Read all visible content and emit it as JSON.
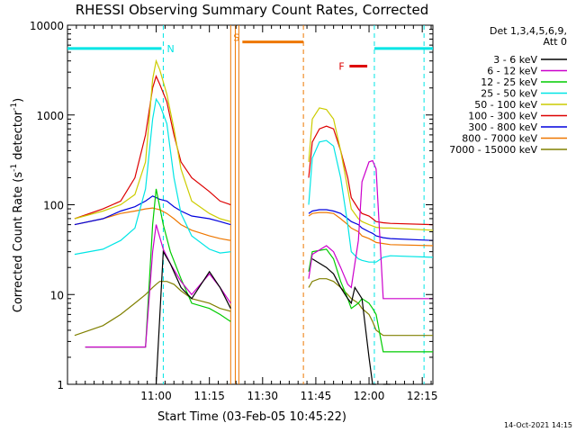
{
  "chart_data": {
    "type": "line",
    "title": "RHESSI Observing Summary Count Rates, Corrected",
    "xlabel": "Start Time (03-Feb-05 10:45:22)",
    "ylabel_main": "Corrected Count Rate (s",
    "ylabel_sup1": "-1",
    "ylabel_mid": " detector",
    "ylabel_sup2": "-1",
    "ylabel_end": ")",
    "y_scale": "log",
    "ylim": [
      1,
      10000
    ],
    "xlim_minutes": [
      -25,
      78
    ],
    "x_ticks": [
      {
        "label": "11:00",
        "m": 0
      },
      {
        "label": "11:15",
        "m": 15
      },
      {
        "label": "11:30",
        "m": 30
      },
      {
        "label": "11:45",
        "m": 45
      },
      {
        "label": "12:00",
        "m": 60
      },
      {
        "label": "12:15",
        "m": 75
      }
    ],
    "y_ticks": [
      {
        "label": "1",
        "v": 1
      },
      {
        "label": "10",
        "v": 10
      },
      {
        "label": "100",
        "v": 100
      },
      {
        "label": "1000",
        "v": 1000
      },
      {
        "label": "10000",
        "v": 10000
      }
    ],
    "legend": {
      "position": "right",
      "header1": "Det 1,3,4,5,6,9,",
      "header2": "Att 0"
    },
    "series": [
      {
        "name": "3 - 6 keV",
        "color": "#000000",
        "x": [
          -20,
          -12,
          -8,
          -3,
          -1,
          0,
          2,
          4,
          7,
          10,
          15,
          18,
          21,
          22,
          22.1,
          43,
          44,
          48,
          50,
          52,
          54,
          55,
          56,
          58,
          60,
          61,
          62,
          62.1,
          64,
          66,
          68
        ],
        "y": [
          null,
          null,
          null,
          null,
          null,
          1,
          30,
          22,
          12,
          9,
          18,
          12,
          7,
          null,
          null,
          null,
          25,
          20,
          17,
          12,
          9,
          8,
          12,
          9,
          2,
          1,
          1,
          null,
          1,
          1,
          null
        ]
      },
      {
        "name": "6 - 12 keV",
        "color": "#cc00cc",
        "x": [
          -20,
          -5,
          -3,
          -1,
          0,
          2,
          4,
          7,
          10,
          15,
          18,
          21,
          22,
          43,
          44,
          48,
          50,
          52,
          54,
          55,
          57,
          58,
          60,
          61,
          62,
          64,
          66,
          78
        ],
        "y": [
          2.6,
          2.6,
          2.6,
          30,
          60,
          32,
          22,
          14,
          10,
          17,
          12,
          8,
          null,
          15,
          28,
          35,
          30,
          20,
          13,
          12,
          40,
          180,
          300,
          310,
          250,
          9,
          9,
          9
        ]
      },
      {
        "name": "12 - 25 keV",
        "color": "#00cc00",
        "x": [
          -20,
          -5,
          -3,
          -1,
          0,
          2,
          4,
          7,
          10,
          15,
          18,
          21,
          22,
          43,
          44,
          48,
          50,
          52,
          54,
          55,
          57,
          58,
          60,
          61,
          62,
          64,
          66,
          78
        ],
        "y": [
          2.6,
          2.6,
          2.6,
          60,
          150,
          60,
          30,
          15,
          8,
          7,
          6,
          5,
          null,
          18,
          30,
          32,
          25,
          14,
          9,
          7,
          8,
          9,
          8,
          7,
          6,
          2.3,
          2.3,
          2.3
        ]
      },
      {
        "name": "25 - 50 keV",
        "color": "#00e5e5",
        "x": [
          -23,
          -15,
          -10,
          -6,
          -3,
          -1,
          0,
          1,
          3,
          5,
          7,
          10,
          15,
          18,
          21,
          22,
          43,
          44,
          46,
          48,
          50,
          52,
          54,
          55,
          57,
          58,
          60,
          61,
          62,
          64,
          66,
          78
        ],
        "y": [
          28,
          32,
          40,
          55,
          150,
          900,
          1500,
          1300,
          800,
          200,
          80,
          45,
          32,
          29,
          30,
          null,
          100,
          330,
          500,
          520,
          450,
          200,
          60,
          30,
          25,
          24,
          23,
          23,
          23,
          26,
          27,
          26
        ]
      },
      {
        "name": "50 - 100 keV",
        "color": "#cccc00",
        "x": [
          -23,
          -15,
          -10,
          -6,
          -3,
          -1,
          0,
          1,
          3,
          5,
          7,
          10,
          15,
          18,
          21,
          22,
          43,
          44,
          46,
          48,
          50,
          52,
          54,
          55,
          57,
          58,
          60,
          61,
          62,
          64,
          66,
          78
        ],
        "y": [
          70,
          85,
          100,
          130,
          300,
          2500,
          4000,
          3200,
          1700,
          700,
          250,
          110,
          80,
          70,
          65,
          null,
          300,
          900,
          1200,
          1150,
          900,
          400,
          150,
          90,
          70,
          65,
          60,
          58,
          56,
          55,
          55,
          52
        ]
      },
      {
        "name": "100 - 300 keV",
        "color": "#dd0000",
        "x": [
          -23,
          -15,
          -10,
          -6,
          -3,
          -1,
          0,
          1,
          3,
          5,
          7,
          10,
          15,
          18,
          21,
          22,
          43,
          44,
          46,
          48,
          50,
          52,
          54,
          55,
          57,
          58,
          60,
          61,
          62,
          64,
          66,
          78
        ],
        "y": [
          70,
          90,
          110,
          200,
          600,
          2000,
          2700,
          2200,
          1400,
          600,
          300,
          200,
          140,
          110,
          100,
          null,
          200,
          500,
          700,
          750,
          700,
          400,
          200,
          120,
          90,
          80,
          75,
          70,
          65,
          63,
          62,
          60
        ]
      },
      {
        "name": "300 - 800 keV",
        "color": "#0000dd",
        "x": [
          -23,
          -15,
          -10,
          -6,
          -3,
          -1,
          0,
          1,
          3,
          5,
          7,
          10,
          15,
          18,
          21,
          22,
          43,
          44,
          46,
          48,
          50,
          52,
          54,
          55,
          57,
          58,
          60,
          61,
          62,
          64,
          66,
          78
        ],
        "y": [
          60,
          70,
          85,
          95,
          110,
          125,
          120,
          115,
          110,
          95,
          85,
          75,
          70,
          65,
          60,
          null,
          80,
          85,
          88,
          88,
          85,
          80,
          70,
          65,
          60,
          55,
          50,
          48,
          45,
          43,
          42,
          40
        ]
      },
      {
        "name": "800 - 7000 keV",
        "color": "#ee7700",
        "x": [
          -23,
          -15,
          -10,
          -6,
          -3,
          -1,
          0,
          1,
          3,
          5,
          7,
          10,
          15,
          18,
          21,
          22,
          43,
          44,
          46,
          48,
          50,
          52,
          54,
          55,
          57,
          58,
          60,
          61,
          62,
          64,
          66,
          78
        ],
        "y": [
          60,
          70,
          80,
          85,
          90,
          92,
          90,
          88,
          80,
          70,
          60,
          52,
          45,
          42,
          40,
          null,
          75,
          80,
          82,
          82,
          80,
          70,
          60,
          55,
          50,
          45,
          42,
          40,
          38,
          37,
          36,
          35
        ]
      },
      {
        "name": "7000 - 15000 keV",
        "color": "#808000",
        "x": [
          -23,
          -15,
          -10,
          -6,
          -3,
          -1,
          0,
          1,
          3,
          5,
          7,
          10,
          15,
          18,
          21,
          22,
          43,
          44,
          46,
          48,
          50,
          52,
          54,
          55,
          57,
          58,
          60,
          61,
          62,
          64,
          66,
          78
        ],
        "y": [
          3.5,
          4.5,
          6,
          8,
          10,
          12,
          13,
          14,
          14,
          13,
          11,
          9,
          8,
          7,
          6.5,
          null,
          12,
          14,
          15,
          15,
          14,
          12,
          10,
          9,
          8,
          7,
          6,
          5,
          4,
          3.5,
          3.5,
          3.5
        ]
      }
    ],
    "annotations": {
      "N": {
        "label": "N",
        "color": "#00e5e5",
        "bar1": [
          -25,
          1.5
        ],
        "bar2": [
          61.5,
          78
        ],
        "level": 5500
      },
      "S": {
        "label": "S",
        "color": "#ee7700",
        "bar": [
          24.3,
          41.5
        ],
        "level": 6500
      },
      "F": {
        "label": "F",
        "color": "#dd0000",
        "bar": [
          54.5,
          59.5
        ],
        "level": 3500
      }
    },
    "vlines": [
      {
        "m": 2,
        "color": "#00e5e5",
        "dash": true
      },
      {
        "m": 21,
        "color": "#ee7700",
        "dash": false
      },
      {
        "m": 22.3,
        "color": "#ee7700",
        "dash": false
      },
      {
        "m": 23.3,
        "color": "#ee7700",
        "dash": false
      },
      {
        "m": 41.5,
        "color": "#ee7700",
        "dash": true
      },
      {
        "m": 61.5,
        "color": "#00e5e5",
        "dash": true
      },
      {
        "m": 75.5,
        "color": "#00e5e5",
        "dash": true
      }
    ],
    "footer_timestamp": "14-Oct-2021 14:15"
  }
}
